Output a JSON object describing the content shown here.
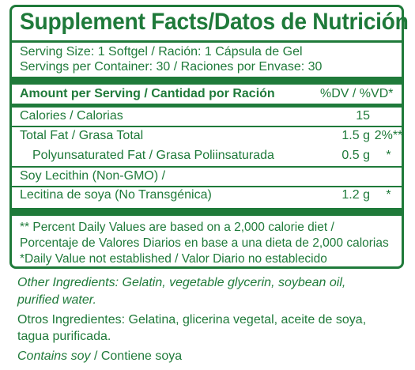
{
  "title": "Supplement Facts/Datos de Nutrición",
  "serving_size": "Serving Size: 1 Softgel / Ración: 1 Cápsula de Gel",
  "servings_per_container": "Servings per Container: 30 / Raciones por Envase: 30",
  "header": {
    "amount_label": "Amount per Serving / Cantidad por Ración",
    "dv_label": "%DV / %VD*"
  },
  "rows": [
    {
      "label": "Calories / Calorias",
      "amount": "15",
      "dv": ""
    },
    {
      "label": "Total Fat / Grasa Total",
      "amount": "1.5 g",
      "dv": "2%**"
    },
    {
      "label": "Polyunsaturated Fat / Grasa Poliinsaturada",
      "amount": "0.5 g",
      "dv": "*"
    },
    {
      "label": "Soy Lecithin (Non-GMO) /",
      "amount": "",
      "dv": ""
    },
    {
      "label": "Lecitina de soya (No Transgénica)",
      "amount": "1.2 g",
      "dv": "*"
    }
  ],
  "footnotes": [
    "** Percent Daily Values are based on a 2,000 calorie diet /",
    "Porcentaje de Valores Diarios en base a una dieta de 2,000 calorias",
    "*Daily Value not established / Valor Diario no establecido"
  ],
  "other_ingredients_en": [
    "Other Ingredients: Gelatin, vegetable glycerin, soybean oil,",
    "purified water."
  ],
  "other_ingredients_es": [
    "Otros Ingredientes: Gelatina, glicerina vegetal, aceite de soya,",
    "tagua purificada."
  ],
  "contains": {
    "en": "Contains soy",
    "sep": " / ",
    "es": "Contiene soya"
  },
  "colors": {
    "brand_green": "#1f7a3a"
  }
}
